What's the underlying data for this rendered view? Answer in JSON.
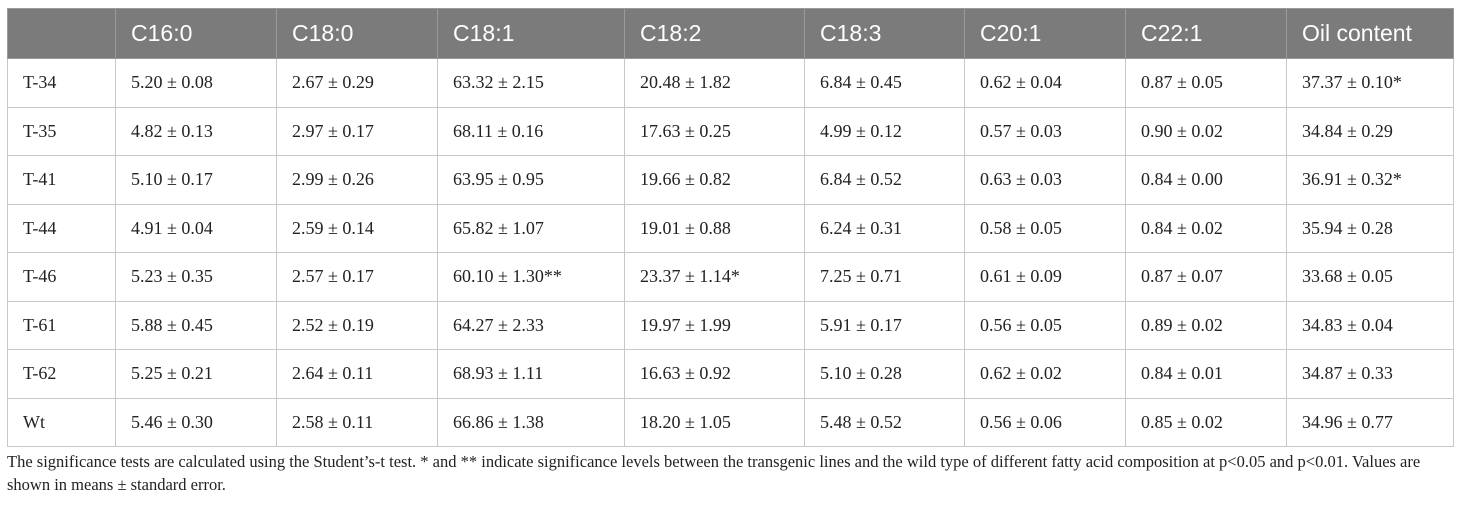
{
  "table": {
    "headers": [
      "",
      "C16:0",
      "C18:0",
      "C18:1",
      "C18:2",
      "C18:3",
      "C20:1",
      "C22:1",
      "Oil content"
    ],
    "rows": [
      [
        "T-34",
        "5.20 ± 0.08",
        "2.67 ± 0.29",
        "63.32 ± 2.15",
        "20.48 ± 1.82",
        "6.84 ± 0.45",
        "0.62 ± 0.04",
        "0.87 ± 0.05",
        "37.37 ± 0.10*"
      ],
      [
        "T-35",
        "4.82 ± 0.13",
        "2.97 ± 0.17",
        "68.11 ± 0.16",
        "17.63 ± 0.25",
        "4.99 ± 0.12",
        "0.57 ± 0.03",
        "0.90 ± 0.02",
        "34.84 ± 0.29"
      ],
      [
        "T-41",
        "5.10 ± 0.17",
        "2.99 ± 0.26",
        "63.95 ± 0.95",
        "19.66 ± 0.82",
        "6.84 ± 0.52",
        "0.63 ± 0.03",
        "0.84 ± 0.00",
        "36.91 ± 0.32*"
      ],
      [
        "T-44",
        "4.91 ± 0.04",
        "2.59 ± 0.14",
        "65.82 ± 1.07",
        "19.01 ± 0.88",
        "6.24 ± 0.31",
        "0.58 ± 0.05",
        "0.84 ± 0.02",
        "35.94 ± 0.28"
      ],
      [
        "T-46",
        "5.23 ± 0.35",
        "2.57 ± 0.17",
        "60.10 ± 1.30**",
        "23.37 ± 1.14*",
        "7.25 ± 0.71",
        "0.61 ± 0.09",
        "0.87 ± 0.07",
        "33.68 ± 0.05"
      ],
      [
        "T-61",
        "5.88 ± 0.45",
        "2.52 ± 0.19",
        "64.27 ± 2.33",
        "19.97 ± 1.99",
        "5.91 ± 0.17",
        "0.56 ± 0.05",
        "0.89 ± 0.02",
        "34.83 ± 0.04"
      ],
      [
        "T-62",
        "5.25 ± 0.21",
        "2.64 ± 0.11",
        "68.93 ± 1.11",
        "16.63 ± 0.92",
        "5.10 ± 0.28",
        "0.62 ± 0.02",
        "0.84 ± 0.01",
        "34.87 ± 0.33"
      ],
      [
        "Wt",
        "5.46 ± 0.30",
        "2.58 ± 0.11",
        "66.86 ± 1.38",
        "18.20 ± 1.05",
        "5.48 ± 0.52",
        "0.56 ± 0.06",
        "0.85 ± 0.02",
        "34.96 ± 0.77"
      ]
    ]
  },
  "footnote": "The significance tests are calculated using the Student’s-t test. * and ** indicate significance levels between the transgenic lines and the wild type of different fatty acid composition at p<0.05 and p<0.01. Values are shown in means ± standard error."
}
